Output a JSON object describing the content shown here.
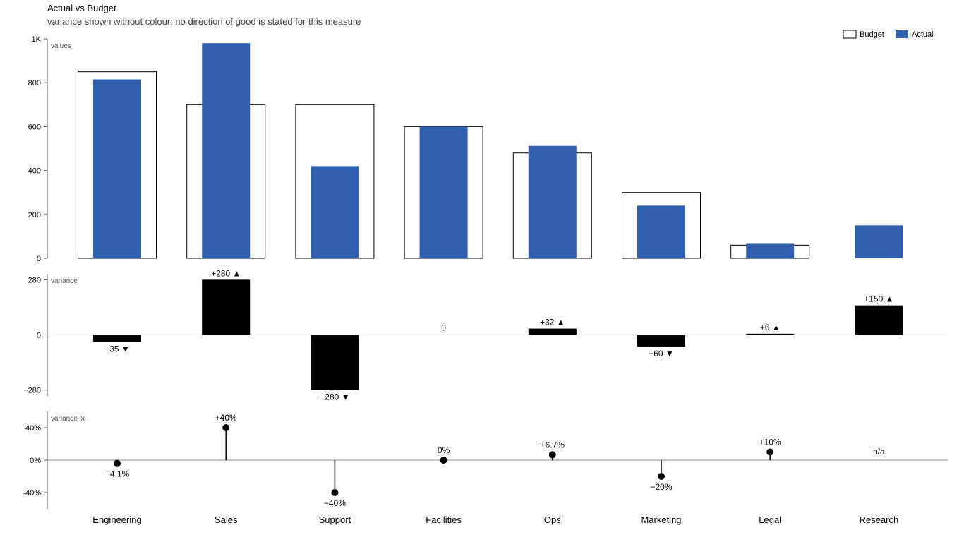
{
  "chart_data": {
    "type": "bar",
    "title": "Actual vs Budget",
    "subtitle": "variance shown without colour: no direction of good is stated for this measure",
    "categories": [
      "Engineering",
      "Sales",
      "Support",
      "Facilities",
      "Ops",
      "Marketing",
      "Legal",
      "Research"
    ],
    "series": [
      {
        "name": "Budget",
        "values": [
          850,
          700,
          700,
          600,
          480,
          300,
          60,
          null
        ]
      },
      {
        "name": "Actual",
        "values": [
          815,
          980,
          420,
          600,
          512,
          240,
          66,
          150
        ]
      }
    ],
    "legend": {
      "position": "top-right",
      "items": [
        "Budget",
        "Actual"
      ]
    },
    "colors": {
      "actual": "#2f5fad",
      "budget_fill": "#ffffff",
      "budget_stroke": "#000000",
      "variance": "#000000"
    },
    "panels": [
      {
        "label": "values",
        "ylim": [
          0,
          1000
        ],
        "ticks": [
          0,
          200,
          400,
          600,
          800,
          1000
        ],
        "tick_labels": [
          "0",
          "200",
          "400",
          "600",
          "800",
          "1K"
        ]
      },
      {
        "label": "variance",
        "ylim": [
          -310,
          310
        ],
        "ticks": [
          -280,
          0,
          280
        ],
        "tick_labels": [
          "−280",
          "0",
          "280"
        ],
        "values": [
          -35,
          280,
          -280,
          0,
          32,
          -60,
          6,
          150
        ],
        "labels": [
          "−35 ▼",
          "+280 ▲",
          "−280 ▼",
          "0",
          "+32 ▲",
          "−60 ▼",
          "+6 ▲",
          "+150 ▲"
        ]
      },
      {
        "label": "variance %",
        "ylim": [
          -60,
          60
        ],
        "ticks": [
          -40,
          0,
          40
        ],
        "tick_labels": [
          "-40%",
          "0%",
          "40%"
        ],
        "values": [
          -4.1,
          40,
          -40,
          0,
          6.7,
          -20,
          10,
          null
        ],
        "labels": [
          "−4.1%",
          "+40%",
          "−40%",
          "0%",
          "+6.7%",
          "−20%",
          "+10%",
          "n/a"
        ]
      }
    ]
  }
}
